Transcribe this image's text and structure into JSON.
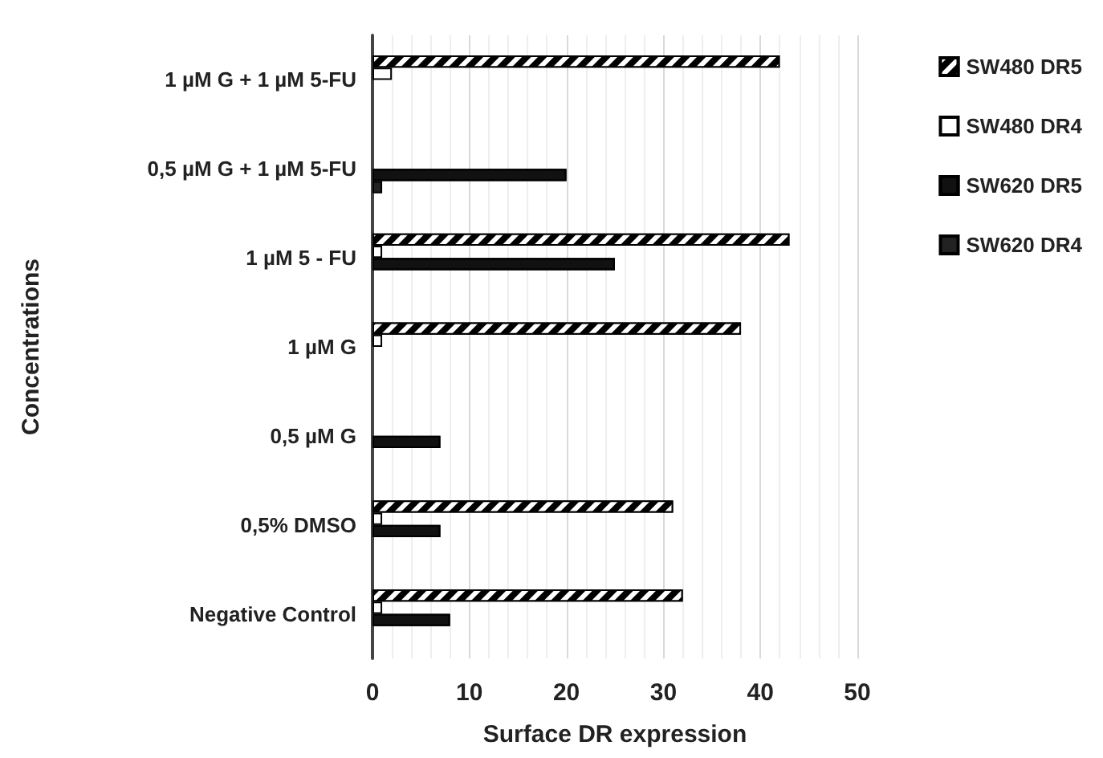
{
  "chart_data": {
    "type": "bar",
    "orientation": "horizontal",
    "xlabel": "Surface DR expression",
    "ylabel": "Concentrations",
    "categories": [
      "1 µM G + 1 µM 5-FU",
      "0,5 µM G + 1 µM 5-FU",
      "1 µM 5 - FU",
      "1 µM G",
      "0,5 µM G",
      "0,5% DMSO",
      "Negative Control"
    ],
    "series": [
      {
        "name": "SW480 DR5",
        "color": "#000000",
        "values": [
          42,
          null,
          43,
          38,
          null,
          31,
          32
        ]
      },
      {
        "name": "SW480 DR4",
        "color": "#ffffff",
        "values": [
          2,
          null,
          1,
          1,
          null,
          1,
          1
        ]
      },
      {
        "name": "SW620 DR5",
        "color": "#111111",
        "values": [
          null,
          20,
          25,
          null,
          7,
          7,
          8
        ]
      },
      {
        "name": "SW620 DR4",
        "color": "#222222",
        "values": [
          null,
          1,
          null,
          null,
          null,
          null,
          null
        ]
      }
    ],
    "xlim": [
      0,
      50
    ],
    "xticks": [
      0,
      10,
      20,
      30,
      40,
      50
    ],
    "grid": "x",
    "legend": "right"
  }
}
